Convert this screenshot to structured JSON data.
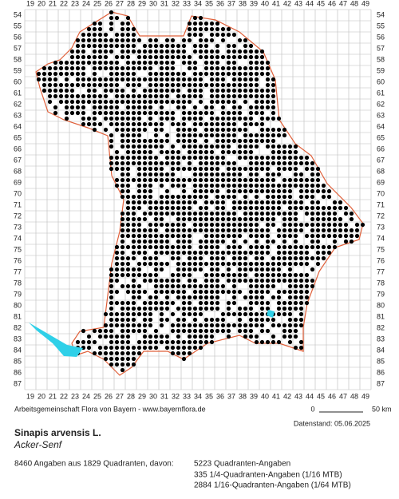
{
  "grid": {
    "columns": [
      19,
      20,
      21,
      22,
      23,
      24,
      25,
      26,
      27,
      28,
      29,
      30,
      31,
      32,
      33,
      34,
      35,
      36,
      37,
      38,
      39,
      40,
      41,
      42,
      43,
      44,
      45,
      46,
      47,
      48,
      49
    ],
    "rows": [
      54,
      55,
      56,
      57,
      58,
      59,
      60,
      61,
      62,
      63,
      64,
      65,
      66,
      67,
      68,
      69,
      70,
      71,
      72,
      73,
      74,
      75,
      76,
      77,
      78,
      79,
      80,
      81,
      82,
      83,
      84,
      85,
      86,
      87
    ]
  },
  "credit": "Arbeitsgemeinschaft Flora von Bayern - www.bayernflora.de",
  "scale": {
    "start": "0",
    "end": "50 km"
  },
  "date": "Datenstand: 05.06.2025",
  "species": {
    "scientific": "Sinapis arvensis L.",
    "common": "Acker-Senf"
  },
  "summary": "8460 Angaben aus 1829 Quadranten, davon:",
  "breakdown": [
    "5223 Quadranten-Angaben",
    "335 1/4-Quadranten-Angaben (1/16 MTB)",
    "2884 1/16-Quadranten-Angaben (1/64 MTB)"
  ]
}
